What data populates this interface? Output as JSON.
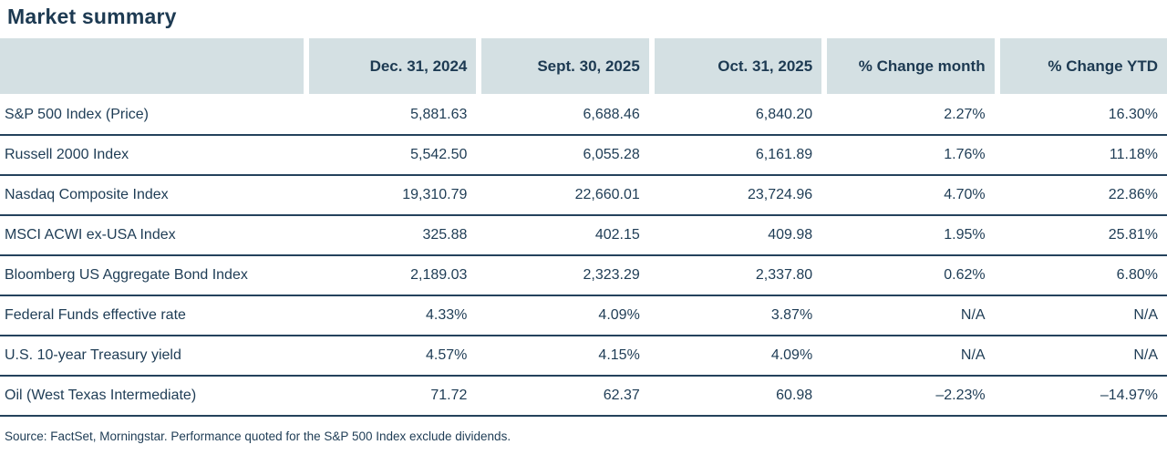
{
  "title": "Market summary",
  "colors": {
    "header_background": "#d4e0e3",
    "text": "#1e3c55",
    "row_divider": "#24425c",
    "page_background": "#ffffff"
  },
  "table": {
    "columns": {
      "c0": "",
      "c1": "Dec. 31, 2024",
      "c2": "Sept. 30, 2025",
      "c3": "Oct. 31, 2025",
      "c4": "% Change month",
      "c5": "% Change YTD"
    },
    "rows": [
      {
        "label": "S&P 500 Index (Price)",
        "values": {
          "v1": "5,881.63",
          "v2": "6,688.46",
          "v3": "6,840.20",
          "v4": "2.27%",
          "v5": "16.30%"
        }
      },
      {
        "label": "Russell 2000 Index",
        "values": {
          "v1": "5,542.50",
          "v2": "6,055.28",
          "v3": "6,161.89",
          "v4": "1.76%",
          "v5": "11.18%"
        }
      },
      {
        "label": "Nasdaq Composite Index",
        "values": {
          "v1": "19,310.79",
          "v2": "22,660.01",
          "v3": "23,724.96",
          "v4": "4.70%",
          "v5": "22.86%"
        }
      },
      {
        "label": "MSCI ACWI ex-USA Index",
        "values": {
          "v1": "325.88",
          "v2": "402.15",
          "v3": "409.98",
          "v4": "1.95%",
          "v5": "25.81%"
        }
      },
      {
        "label": "Bloomberg US Aggregate Bond Index",
        "values": {
          "v1": "2,189.03",
          "v2": "2,323.29",
          "v3": "2,337.80",
          "v4": "0.62%",
          "v5": "6.80%"
        }
      },
      {
        "label": "Federal Funds effective rate",
        "values": {
          "v1": "4.33%",
          "v2": "4.09%",
          "v3": "3.87%",
          "v4": "N/A",
          "v5": "N/A"
        }
      },
      {
        "label": "U.S. 10-year Treasury yield",
        "values": {
          "v1": "4.57%",
          "v2": "4.15%",
          "v3": "4.09%",
          "v4": "N/A",
          "v5": "N/A"
        }
      },
      {
        "label": "Oil (West Texas Intermediate)",
        "values": {
          "v1": "71.72",
          "v2": "62.37",
          "v3": "60.98",
          "v4": "–2.23%",
          "v5": "–14.97%"
        }
      }
    ]
  },
  "footer": {
    "source": "Source: FactSet, Morningstar. Performance quoted for the S&P 500 Index exclude dividends."
  }
}
